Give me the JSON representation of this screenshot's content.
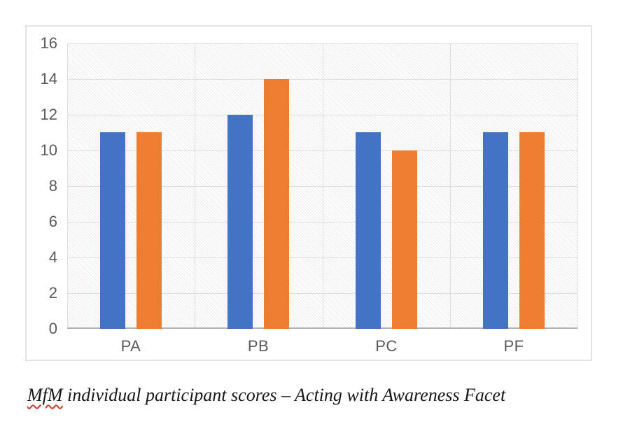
{
  "chart_data": {
    "type": "bar",
    "categories": [
      "PA",
      "PB",
      "PC",
      "PF"
    ],
    "series": [
      {
        "name": "blue",
        "color": "#4472C4",
        "values": [
          11,
          12,
          11,
          11
        ]
      },
      {
        "name": "orange",
        "color": "#ED7D31",
        "values": [
          11,
          14,
          10,
          11
        ]
      }
    ],
    "ylim": [
      0,
      16
    ],
    "ytick_step": 2,
    "yticks": [
      0,
      2,
      4,
      6,
      8,
      10,
      12,
      14,
      16
    ],
    "grid": true,
    "legend_position": "none",
    "plot_background": "light diagonal hatch pattern",
    "gridline_color": "#dedede",
    "axis_line_color": "#b3b3b3",
    "tick_label_color": "#595959"
  },
  "caption": {
    "misspelled_word": "MfM",
    "rest_of_text": " individual participant scores – Acting with Awareness Facet",
    "spellcheck_underline_color": "#cc392b"
  }
}
